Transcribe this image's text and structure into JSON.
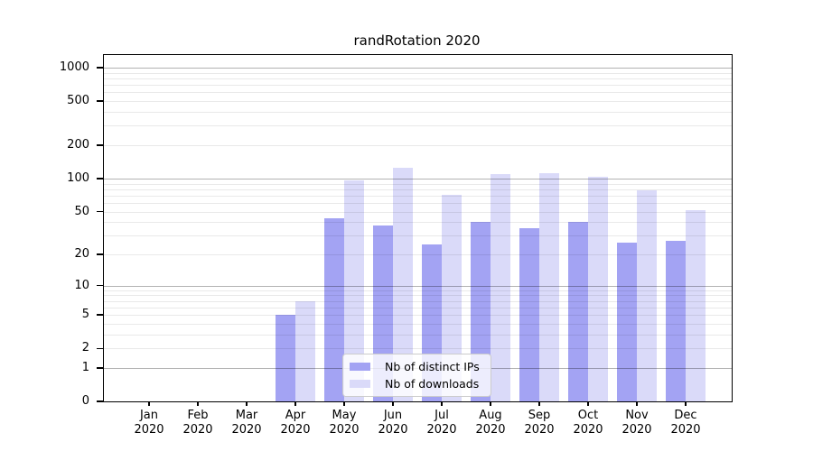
{
  "chart_data": {
    "type": "bar",
    "title": "randRotation 2020",
    "x": {
      "months": [
        "Jan",
        "Feb",
        "Mar",
        "Apr",
        "May",
        "Jun",
        "Jul",
        "Aug",
        "Sep",
        "Oct",
        "Nov",
        "Dec"
      ],
      "year": "2020"
    },
    "series": [
      {
        "name": "Nb of distinct IPs",
        "color": "#a3a3f3",
        "values": [
          0,
          0,
          0,
          5,
          43,
          37,
          25,
          40,
          35,
          40,
          26,
          27
        ]
      },
      {
        "name": "Nb of downloads",
        "color": "#dadaf9",
        "values": [
          0,
          0,
          0,
          7,
          97,
          126,
          71,
          109,
          111,
          103,
          78,
          51
        ]
      }
    ],
    "y_axis": {
      "scale": "log10(value+1)",
      "tick_values": [
        0,
        1,
        2,
        5,
        10,
        20,
        50,
        100,
        200,
        500,
        1000
      ],
      "grid_major_values": [
        1,
        10,
        100,
        1000
      ],
      "grid_minor_values": [
        2,
        3,
        4,
        5,
        6,
        7,
        8,
        9,
        20,
        30,
        40,
        50,
        60,
        70,
        80,
        90,
        200,
        300,
        400,
        500,
        600,
        700,
        800,
        900
      ],
      "ylim": [
        0,
        1300
      ]
    },
    "legend_position": "inside-bottom-center",
    "colors": {
      "grid_major": "rgba(0,0,0,0.30)",
      "grid_minor": "rgba(0,0,0,0.085)",
      "spine": "#000000",
      "legend_bg": "rgba(255,255,255,0.8)",
      "legend_border": "#cccccc",
      "title": "#000000",
      "tick_label": "#000000",
      "background": "#ffffff"
    }
  }
}
